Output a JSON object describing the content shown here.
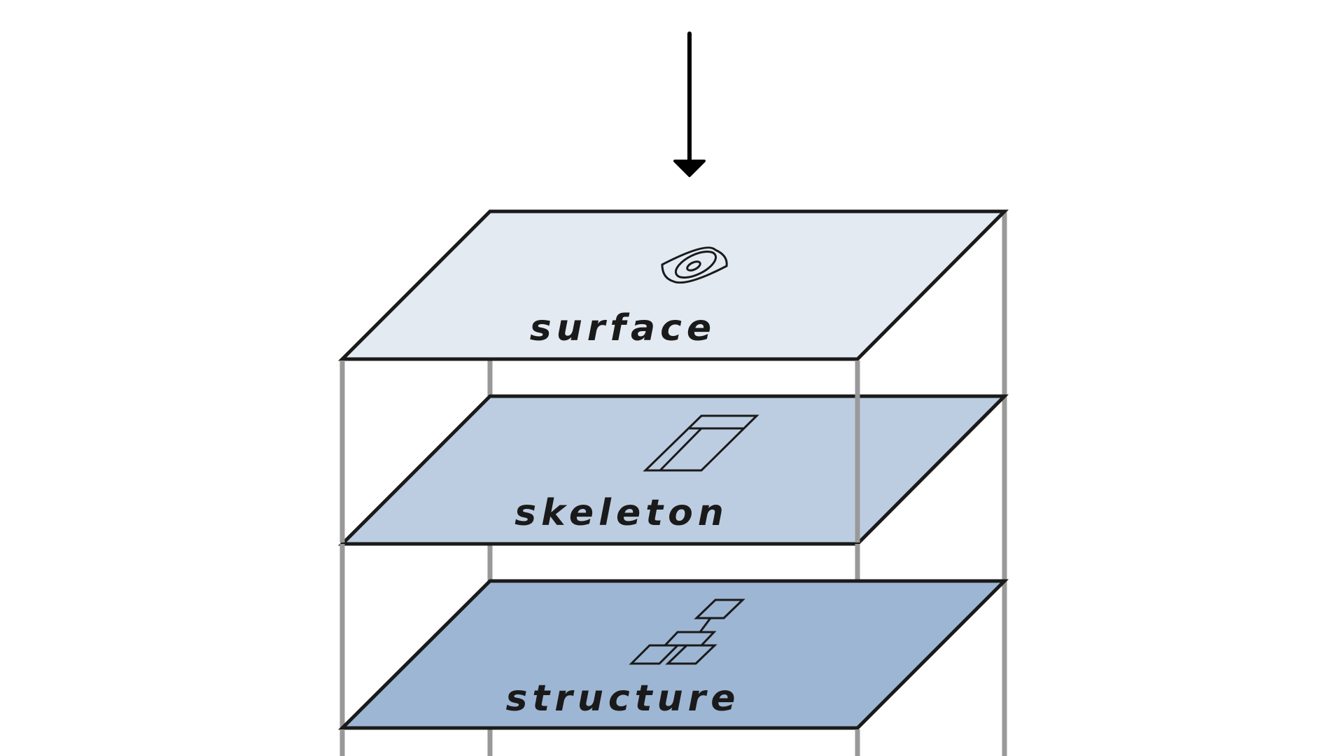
{
  "diagram": {
    "layers": [
      {
        "label": "surface",
        "icon": "eye-icon",
        "fill": "#e3eaf2"
      },
      {
        "label": "skeleton",
        "icon": "wireframe-icon",
        "fill": "#bdcde1"
      },
      {
        "label": "structure",
        "icon": "sitemap-icon",
        "fill": "#9db6d4"
      }
    ],
    "arrow_icon": "arrow-down-icon",
    "colors": {
      "outline": "#1a1a1a",
      "post": "#999999",
      "background": "#ffffff"
    }
  }
}
